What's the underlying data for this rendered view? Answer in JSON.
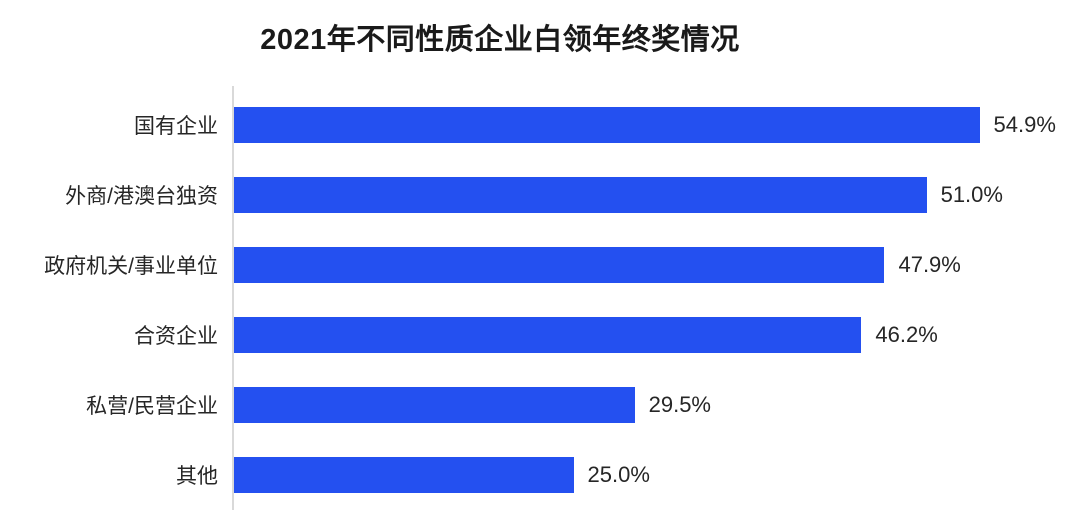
{
  "title": "2021年不同性质企业白领年终奖情况",
  "chart_data": {
    "type": "bar",
    "orientation": "horizontal",
    "title": "2021年不同性质企业白领年终奖情况",
    "categories": [
      "国有企业",
      "外商/港澳台独资",
      "政府机关/事业单位",
      "合资企业",
      "私营/民营企业",
      "其他"
    ],
    "values": [
      54.9,
      51.0,
      47.9,
      46.2,
      29.5,
      25.0
    ],
    "value_labels": [
      "54.9%",
      "51.0%",
      "47.9%",
      "46.2%",
      "29.5%",
      "25.0%"
    ],
    "xlabel": "",
    "ylabel": "",
    "xlim": [
      0,
      57
    ],
    "grid": false,
    "legend": false,
    "bar_color": "#2450f0",
    "axis_line_color": "#d9d9d9",
    "text_color": "#262626"
  }
}
